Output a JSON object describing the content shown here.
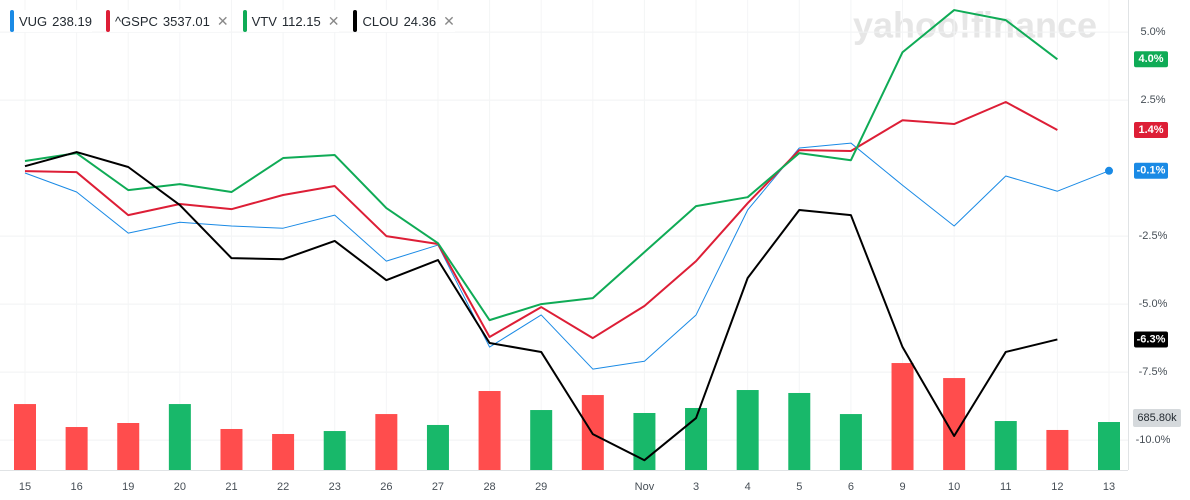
{
  "chart_data": {
    "type": "line",
    "watermark": "yahoo!finance",
    "categories": [
      "15",
      "16",
      "19",
      "20",
      "21",
      "22",
      "23",
      "26",
      "27",
      "28",
      "29",
      null,
      "Nov",
      "3",
      "4",
      "5",
      "6",
      "9",
      "10",
      "11",
      "12",
      "13"
    ],
    "ylim": [
      -11.1,
      6.18
    ],
    "yticks": [
      {
        "value": 5,
        "label": "5.0%"
      },
      {
        "value": 2.5,
        "label": "2.5%"
      },
      {
        "value": -2.5,
        "label": "-2.5%"
      },
      {
        "value": -5,
        "label": "-5.0%"
      },
      {
        "value": -7.5,
        "label": "-7.5%"
      },
      {
        "value": -10,
        "label": "-10.0%"
      }
    ],
    "grid": true,
    "series": [
      {
        "name": "VUG",
        "price": 238.19,
        "color": "#1a8ae5",
        "width": 1,
        "last_label": "-0.1%",
        "values": [
          -0.18,
          -0.88,
          -2.39,
          -1.99,
          -2.13,
          -2.21,
          -1.73,
          -3.42,
          -2.83,
          -6.58,
          -5.4,
          -7.39,
          -7.1,
          -5.4,
          -1.54,
          0.74,
          0.92,
          -0.63,
          -2.13,
          -0.29,
          -0.85,
          -0.1
        ]
      },
      {
        "name": "^GSPC",
        "price": 3537.01,
        "color": "#dd1e36",
        "width": 2,
        "last_label": "1.4%",
        "values": [
          -0.11,
          -0.15,
          -1.73,
          -1.32,
          -1.51,
          -0.99,
          -0.66,
          -2.5,
          -2.79,
          -6.21,
          -5.11,
          -6.25,
          -5.07,
          -3.42,
          -1.29,
          0.66,
          0.63,
          1.76,
          1.62,
          2.43,
          1.4,
          null
        ]
      },
      {
        "name": "VTV",
        "price": 112.15,
        "color": "#0fab56",
        "width": 2,
        "last_label": "4.0%",
        "values": [
          0.26,
          0.55,
          -0.81,
          -0.59,
          -0.88,
          0.37,
          0.48,
          -1.47,
          -2.76,
          -5.59,
          -5.0,
          -4.78,
          -3.09,
          -1.4,
          -1.07,
          0.55,
          0.29,
          4.26,
          5.81,
          5.44,
          4.0,
          null
        ]
      },
      {
        "name": "CLOU",
        "price": 24.36,
        "color": "#000000",
        "width": 2,
        "last_label": "-6.3%",
        "values": [
          0.07,
          0.59,
          0.04,
          -1.36,
          -3.31,
          -3.35,
          -2.68,
          -4.12,
          -3.38,
          -6.43,
          -6.76,
          -9.78,
          -10.74,
          -9.19,
          -4.04,
          -1.54,
          -1.73,
          -6.58,
          -9.85,
          -6.76,
          -6.3,
          null
        ]
      }
    ],
    "volume": {
      "axis": "y2",
      "values": [
        870,
        567,
        620,
        870,
        541,
        475,
        514,
        738,
        594,
        1042,
        791,
        989,
        752,
        818,
        1055,
        1016,
        738,
        1411,
        1213,
        646,
        528,
        633
      ],
      "colors": [
        "#ff4d4d",
        "#ff4d4d",
        "#ff4d4d",
        "#18b86a",
        "#ff4d4d",
        "#ff4d4d",
        "#18b86a",
        "#ff4d4d",
        "#18b86a",
        "#ff4d4d",
        "#18b86a",
        "#ff4d4d",
        "#18b86a",
        "#18b86a",
        "#18b86a",
        "#18b86a",
        "#18b86a",
        "#ff4d4d",
        "#ff4d4d",
        "#18b86a",
        "#ff4d4d",
        "#18b86a"
      ]
    },
    "y2lim": [
      0,
      6200
    ],
    "y2ticks": [
      {
        "value": 685.8,
        "label": "685.80k"
      }
    ]
  }
}
